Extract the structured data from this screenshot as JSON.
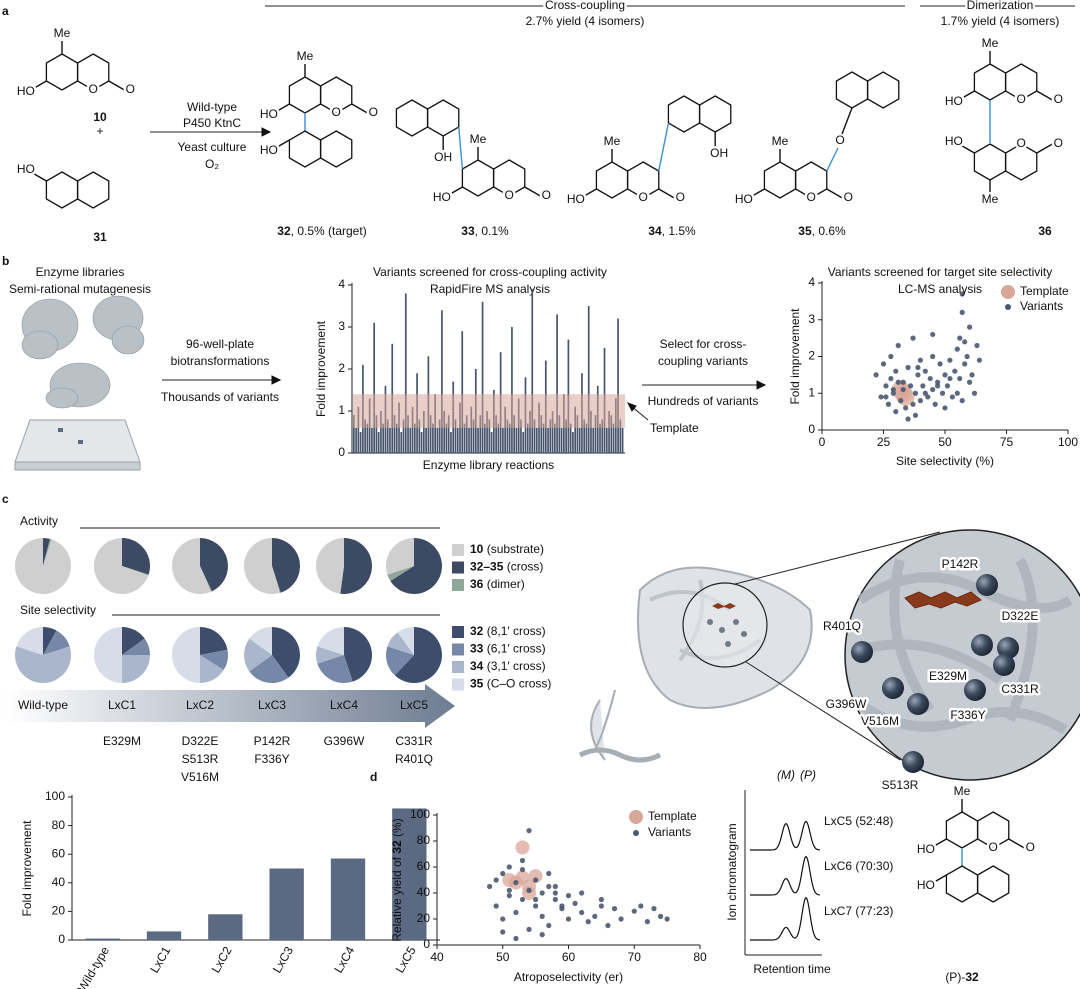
{
  "panel_letters": [
    "a",
    "b",
    "c",
    "d"
  ],
  "panel_a": {
    "reactant_10": {
      "id": "10",
      "atoms": [
        "Me",
        "HO",
        "O",
        "O"
      ]
    },
    "plus": "+",
    "reactant_31": {
      "id": "31",
      "atoms": [
        "HO"
      ]
    },
    "conditions": [
      "Wild-type",
      "P450 KtnC",
      "Yeast culture",
      "O₂"
    ],
    "cross_coupling": {
      "title": "Cross-coupling",
      "yield": "2.7% yield (4 isomers)"
    },
    "dimerization": {
      "title": "Dimerization",
      "yield": "1.7% yield (4 isomers)"
    },
    "products": [
      {
        "id": "32",
        "note": ", 0.5% (target)",
        "atoms": [
          "Me",
          "HO",
          "O",
          "O",
          "HO"
        ]
      },
      {
        "id": "33",
        "note": ", 0.1%",
        "atoms": [
          "Me",
          "OH",
          "HO",
          "O",
          "O"
        ]
      },
      {
        "id": "34",
        "note": ", 1.5%",
        "atoms": [
          "Me",
          "HO",
          "O",
          "O",
          "OH"
        ]
      },
      {
        "id": "35",
        "note": ", 0.6%",
        "atoms": [
          "Me",
          "HO",
          "O",
          "O",
          "O"
        ]
      },
      {
        "id": "36",
        "atoms": [
          "Me",
          "HO",
          "O",
          "O",
          "HO",
          "O",
          "O",
          "Me"
        ]
      }
    ]
  },
  "panel_b": {
    "left": [
      "Enzyme libraries",
      "Semi-rational mutagenesis"
    ],
    "step1": {
      "above": [
        "96-well-plate",
        "biotransformations"
      ],
      "below": "Thousands of variants"
    },
    "step2": {
      "above": [
        "Select for cross-",
        "coupling variants"
      ],
      "below": "Hundreds of variants"
    }
  },
  "panel_c": {
    "variants": [
      "Wild-type",
      "LxC1",
      "LxC2",
      "LxC3",
      "LxC4",
      "LxC5"
    ],
    "mutations": [
      [],
      [
        "E329M"
      ],
      [
        "D322E",
        "S513R",
        "V516M"
      ],
      [
        "P142R",
        "F336Y"
      ],
      [
        "G396W"
      ],
      [
        "C331R",
        "R401Q"
      ]
    ],
    "residues": [
      "P142R",
      "D322E",
      "R401Q",
      "E329M",
      "C331R",
      "G396W",
      "F336Y",
      "V516M",
      "S513R"
    ]
  },
  "panel_d_structure": {
    "prefix": "(P)-",
    "id": "32",
    "atoms": [
      "Me",
      "HO",
      "O",
      "O",
      "HO"
    ]
  },
  "chart_data": [
    {
      "type": "bar",
      "title": "Variants screened for cross-coupling activity",
      "subtitle": "RapidFire MS analysis",
      "xlabel": "Enzyme library reactions",
      "ylabel": "Fold improvement",
      "ylim": [
        0,
        4
      ],
      "yticks": [
        0,
        1,
        2,
        3,
        4
      ],
      "color": "#46556d",
      "band_color": "#d9a79a",
      "template_band": [
        0.6,
        1.4
      ],
      "annotation": "Template",
      "values": [
        0.9,
        0.6,
        1.1,
        0.5,
        2.1,
        0.8,
        0.7,
        1.3,
        0.6,
        3.1,
        0.9,
        0.5,
        1.0,
        0.7,
        1.6,
        0.8,
        0.6,
        2.6,
        0.9,
        0.7,
        1.2,
        0.5,
        0.8,
        3.8,
        0.9,
        0.6,
        1.1,
        0.7,
        1.9,
        0.8,
        0.5,
        1.0,
        0.6,
        2.3,
        0.9,
        0.7,
        1.4,
        0.6,
        0.8,
        3.4,
        1.0,
        0.7,
        0.9,
        0.5,
        1.7,
        0.8,
        0.6,
        1.2,
        2.9,
        0.7,
        0.9,
        0.6,
        1.1,
        0.8,
        2.0,
        0.6,
        0.9,
        3.6,
        0.7,
        1.0,
        0.8,
        0.5,
        1.5,
        0.9,
        0.7,
        2.4,
        0.6,
        1.1,
        0.8,
        0.7,
        3.0,
        0.9,
        0.6,
        1.3,
        0.8,
        0.5,
        1.8,
        0.7,
        1.0,
        3.9,
        0.8,
        0.6,
        1.2,
        0.9,
        0.7,
        2.2,
        0.6,
        0.8,
        1.0,
        0.7,
        3.3,
        0.9,
        0.6,
        1.4,
        0.8,
        2.7,
        0.7,
        0.5,
        1.1,
        0.9,
        0.6,
        1.9,
        0.8,
        0.7,
        3.5,
        1.0,
        0.6,
        0.9,
        1.6,
        0.7,
        0.8,
        2.5,
        0.6,
        1.0,
        0.9,
        0.7,
        1.3,
        3.2,
        0.8,
        0.6
      ]
    },
    {
      "type": "scatter",
      "title": "Variants screened for target site selectivity",
      "subtitle": "LC-MS analysis",
      "xlabel": "Site selectivity (%)",
      "ylabel": "Fold improvement",
      "xlim": [
        0,
        100
      ],
      "xticks": [
        0,
        25,
        50,
        75,
        100
      ],
      "ylim": [
        0,
        4
      ],
      "yticks": [
        0,
        1,
        2,
        3,
        4
      ],
      "series": [
        {
          "name": "Template",
          "color": "#d9a79a",
          "x": [
            33,
            34,
            32
          ],
          "values": [
            1.0,
            0.9,
            1.1
          ]
        },
        {
          "name": "Variants",
          "color": "#4a5870",
          "x": [
            22,
            24,
            25,
            26,
            27,
            28,
            28,
            29,
            30,
            30,
            31,
            31,
            32,
            33,
            34,
            35,
            35,
            36,
            37,
            38,
            38,
            39,
            40,
            40,
            41,
            42,
            43,
            44,
            45,
            45,
            46,
            47,
            48,
            49,
            50,
            50,
            51,
            52,
            53,
            54,
            55,
            55,
            56,
            56,
            57,
            57,
            58,
            58,
            59,
            60,
            60,
            61,
            62,
            63,
            64,
            26,
            29,
            33,
            37,
            42,
            47,
            52,
            57,
            45,
            39
          ],
          "values": [
            1.5,
            0.9,
            1.8,
            1.2,
            0.7,
            1.4,
            2.0,
            1.0,
            1.6,
            0.5,
            1.3,
            2.3,
            0.8,
            1.1,
            0.6,
            1.7,
            0.3,
            1.2,
            2.5,
            1.0,
            0.4,
            1.5,
            1.9,
            0.8,
            1.2,
            1.6,
            0.9,
            1.4,
            2.0,
            1.1,
            0.7,
            1.3,
            1.8,
            1.0,
            1.5,
            0.6,
            1.2,
            1.9,
            0.9,
            1.6,
            2.2,
            1.0,
            2.5,
            1.4,
            3.7,
            3.2,
            2.4,
            1.8,
            2.0,
            1.3,
            2.8,
            1.5,
            1.0,
            2.3,
            1.9,
            0.9,
            1.1,
            1.3,
            0.7,
            1.0,
            1.2,
            1.4,
            0.8,
            2.6,
            1.7
          ]
        }
      ]
    },
    {
      "type": "pie",
      "title": "Activity",
      "series": [
        {
          "name": "10",
          "note": " (substrate)",
          "color": "#cfcfcf",
          "values": [
            95,
            69.5,
            56.5,
            54.5,
            47.5,
            30
          ]
        },
        {
          "name": "32–35",
          "note": " (cross)",
          "color": "#3d4a63",
          "values": [
            4,
            30,
            43,
            45,
            52,
            66
          ]
        },
        {
          "name": "36",
          "note": " (dimer)",
          "color": "#8fa79a",
          "values": [
            1,
            0.5,
            0.5,
            0.5,
            0.5,
            4
          ]
        }
      ]
    },
    {
      "type": "pie",
      "title": "Site selectivity",
      "series": [
        {
          "name": "32",
          "note": " (8,1′ cross)",
          "color": "#3e4d6b",
          "values": [
            8,
            15,
            22,
            40,
            45,
            62
          ]
        },
        {
          "name": "33",
          "note": " (6,1′ cross)",
          "color": "#7688a8",
          "values": [
            12,
            10,
            12,
            25,
            25,
            18
          ]
        },
        {
          "name": "34",
          "note": " (3,1′ cross)",
          "color": "#a9b6cb",
          "values": [
            60,
            25,
            16,
            20,
            10,
            10
          ]
        },
        {
          "name": "35",
          "note": " (C–O cross)",
          "color": "#d6dde8",
          "values": [
            20,
            50,
            50,
            15,
            20,
            10
          ]
        }
      ]
    },
    {
      "type": "bar",
      "ylabel": "Fold improvement",
      "categories": [
        "Wild-type",
        "LxC1",
        "LxC2",
        "LxC3",
        "LxC4",
        "LxC5"
      ],
      "values": [
        1,
        6,
        18,
        50,
        57,
        92
      ],
      "color": "#5b6a82",
      "ylim": [
        0,
        100
      ],
      "yticks": [
        0,
        20,
        40,
        60,
        80,
        100
      ]
    },
    {
      "type": "scatter",
      "xlabel": "Atroposelectivity (er)",
      "ylabel": [
        "Relative yield of ",
        "32",
        " (%)"
      ],
      "xlim": [
        40,
        80
      ],
      "xticks": [
        40,
        50,
        60,
        70,
        80
      ],
      "ylim": [
        0,
        100
      ],
      "yticks": [
        0,
        20,
        40,
        60,
        80,
        100
      ],
      "series": [
        {
          "name": "Template",
          "color": "#d9a79a",
          "x": [
            52,
            53,
            54,
            51,
            55,
            53,
            54
          ],
          "values": [
            48,
            52,
            45,
            50,
            53,
            75,
            40
          ]
        },
        {
          "name": "Variants",
          "color": "#4a5870",
          "x": [
            48,
            49,
            50,
            50,
            51,
            51,
            52,
            52,
            53,
            53,
            54,
            54,
            55,
            55,
            56,
            56,
            57,
            57,
            58,
            58,
            59,
            60,
            60,
            61,
            62,
            63,
            64,
            65,
            66,
            67,
            68,
            70,
            71,
            72,
            73,
            74,
            75,
            50,
            52,
            54,
            56,
            58,
            49,
            51,
            53,
            55,
            57,
            59,
            62,
            65
          ],
          "values": [
            45,
            30,
            55,
            20,
            38,
            60,
            25,
            48,
            65,
            35,
            42,
            88,
            30,
            50,
            22,
            40,
            55,
            15,
            35,
            45,
            28,
            38,
            20,
            32,
            25,
            18,
            22,
            30,
            15,
            28,
            20,
            26,
            30,
            18,
            28,
            22,
            20,
            10,
            5,
            12,
            8,
            40,
            50,
            42,
            58,
            35,
            45,
            30,
            40,
            35
          ]
        }
      ]
    },
    {
      "type": "chromatogram",
      "ylabel": "Ion chromatogram",
      "xlabel": "Retention time",
      "peak_labels": [
        "(M)",
        "(P)"
      ],
      "traces": [
        {
          "name": "LxC5 (52:48)",
          "values": [
            52,
            48
          ]
        },
        {
          "name": "LxC6 (70:30)",
          "values": [
            70,
            30
          ]
        },
        {
          "name": "LxC7 (77:23)",
          "values": [
            77,
            23
          ]
        }
      ]
    }
  ]
}
